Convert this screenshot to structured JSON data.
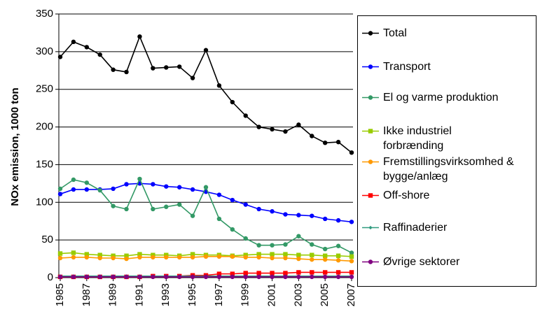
{
  "chart_data": {
    "type": "line",
    "y_label": "NOx emission, 1000 ton",
    "x": [
      1985,
      1986,
      1987,
      1988,
      1989,
      1990,
      1991,
      1992,
      1993,
      1994,
      1995,
      1996,
      1997,
      1998,
      1999,
      2000,
      2001,
      2002,
      2003,
      2004,
      2005,
      2006,
      2007
    ],
    "xlim": [
      1985,
      2007
    ],
    "xticks": [
      1985,
      1987,
      1989,
      1991,
      1993,
      1995,
      1997,
      1999,
      2001,
      2003,
      2005,
      2007
    ],
    "ylim": [
      0,
      350
    ],
    "yticks": [
      0,
      50,
      100,
      150,
      200,
      250,
      300,
      350
    ],
    "grid": true,
    "legend": "right",
    "series": [
      {
        "name": "Total",
        "color": "#000000",
        "marker": "circle",
        "values": [
          293,
          313,
          306,
          296,
          276,
          273,
          320,
          278,
          279,
          280,
          265,
          302,
          255,
          233,
          215,
          200,
          197,
          194,
          203,
          188,
          179,
          180,
          166
        ]
      },
      {
        "name": "Transport",
        "color": "#0000ff",
        "marker": "circle",
        "values": [
          111,
          117,
          117,
          117,
          118,
          124,
          125,
          124,
          121,
          120,
          117,
          114,
          110,
          103,
          97,
          91,
          88,
          84,
          83,
          82,
          78,
          76,
          74
        ]
      },
      {
        "name": "El og varme produktion",
        "color": "#339966",
        "marker": "circle",
        "values": [
          118,
          130,
          126,
          116,
          95,
          91,
          131,
          91,
          94,
          97,
          82,
          120,
          78,
          64,
          52,
          43,
          43,
          44,
          55,
          44,
          38,
          42,
          33
        ]
      },
      {
        "name": "Ikke industriel\nforbrænding",
        "color": "#99cc00",
        "marker": "square",
        "values": [
          32,
          33,
          31,
          30,
          29,
          29,
          31,
          30,
          30,
          29,
          31,
          30,
          30,
          29,
          30,
          31,
          31,
          31,
          30,
          30,
          29,
          29,
          28
        ]
      },
      {
        "name": "Fremstillingsvirksomhed &\nbygge/anlæg",
        "color": "#ff9900",
        "marker": "circle",
        "values": [
          26,
          27,
          27,
          26,
          26,
          25,
          27,
          27,
          27,
          27,
          27,
          28,
          28,
          28,
          27,
          27,
          26,
          26,
          25,
          24,
          24,
          23,
          22
        ]
      },
      {
        "name": "Off-shore",
        "color": "#ff0000",
        "marker": "square",
        "values": [
          1,
          1,
          1,
          1,
          1,
          1,
          1,
          2,
          2,
          2,
          3,
          3,
          5,
          5,
          6,
          6,
          6,
          6,
          7,
          7,
          7,
          7,
          7
        ]
      },
      {
        "name": "Raffinaderier",
        "color": "#2e9a7e",
        "marker": "diamond",
        "values": [
          2,
          2,
          2,
          2,
          2,
          2,
          2,
          2,
          2,
          2,
          2,
          2,
          2,
          2,
          2,
          2,
          2,
          2,
          2,
          2,
          2,
          2,
          2
        ]
      },
      {
        "name": "Øvrige sektorer",
        "color": "#800080",
        "marker": "circle",
        "values": [
          1,
          1,
          1,
          1,
          1,
          1,
          1,
          1,
          1,
          1,
          1,
          1,
          1,
          1,
          1,
          1,
          1,
          1,
          1,
          1,
          1,
          1,
          1
        ]
      }
    ]
  }
}
